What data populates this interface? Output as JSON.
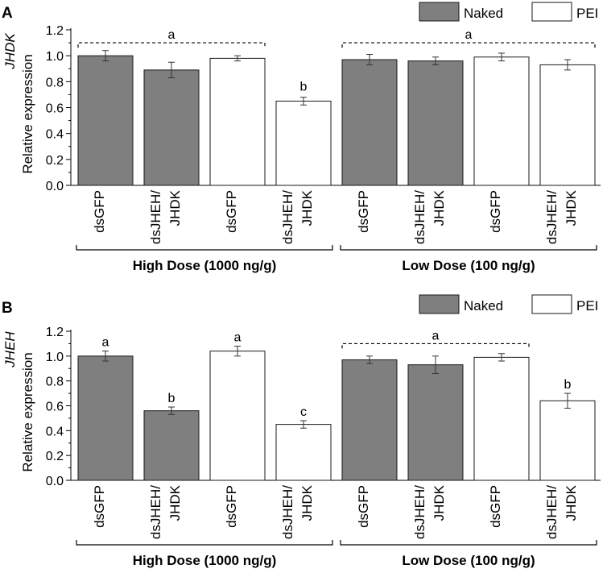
{
  "colors": {
    "naked": "#7f7f7f",
    "pei": "#ffffff",
    "edge": "#1a1a1a"
  },
  "chart_data": [
    {
      "type": "bar",
      "panel_label": "A",
      "gene": "JHDK",
      "ylabel": "Relative expression",
      "ylim": [
        0,
        1.2
      ],
      "yticks": [
        "0.0",
        "0.2",
        "0.4",
        "0.6",
        "0.8",
        "1.0",
        "1.2"
      ],
      "legend": [
        {
          "name": "Naked",
          "style": "naked"
        },
        {
          "name": "PEI",
          "style": "pei"
        }
      ],
      "bars": [
        {
          "label": [
            "dsGFP"
          ],
          "treatment": "Naked",
          "value": 1.0,
          "error": 0.04
        },
        {
          "label": [
            "dsJHEH/",
            "JHDK"
          ],
          "treatment": "Naked",
          "value": 0.89,
          "error": 0.06
        },
        {
          "label": [
            "dsGFP"
          ],
          "treatment": "PEI",
          "value": 0.98,
          "error": 0.02
        },
        {
          "label": [
            "dsJHEH/",
            "JHDK"
          ],
          "treatment": "PEI",
          "value": 0.65,
          "error": 0.03
        },
        {
          "label": [
            "dsGFP"
          ],
          "treatment": "Naked",
          "value": 0.97,
          "error": 0.04
        },
        {
          "label": [
            "dsJHEH/",
            "JHDK"
          ],
          "treatment": "Naked",
          "value": 0.96,
          "error": 0.03
        },
        {
          "label": [
            "dsGFP"
          ],
          "treatment": "PEI",
          "value": 0.99,
          "error": 0.03
        },
        {
          "label": [
            "dsJHEH/",
            "JHDK"
          ],
          "treatment": "PEI",
          "value": 0.93,
          "error": 0.04
        }
      ],
      "significance": [
        {
          "letter": "a",
          "from": 0,
          "to": 2,
          "level": 1.1,
          "bracket": true
        },
        {
          "letter": "b",
          "from": 3,
          "to": 3,
          "level": 0.73,
          "bracket": false
        },
        {
          "letter": "a",
          "from": 4,
          "to": 7,
          "level": 1.1,
          "bracket": true
        }
      ],
      "groups": [
        {
          "label": "High Dose (1000 ng/g)",
          "from": 0,
          "to": 3
        },
        {
          "label": "Low Dose (100 ng/g)",
          "from": 4,
          "to": 7
        }
      ]
    },
    {
      "type": "bar",
      "panel_label": "B",
      "gene": "JHEH",
      "ylabel": "Relative expression",
      "ylim": [
        0,
        1.2
      ],
      "yticks": [
        "0.0",
        "0.2",
        "0.4",
        "0.6",
        "0.8",
        "1.0",
        "1.2"
      ],
      "legend": [
        {
          "name": "Naked",
          "style": "naked"
        },
        {
          "name": "PEI",
          "style": "pei"
        }
      ],
      "bars": [
        {
          "label": [
            "dsGFP"
          ],
          "treatment": "Naked",
          "value": 1.0,
          "error": 0.04
        },
        {
          "label": [
            "dsJHEH/",
            "JHDK"
          ],
          "treatment": "Naked",
          "value": 0.56,
          "error": 0.03
        },
        {
          "label": [
            "dsGFP"
          ],
          "treatment": "PEI",
          "value": 1.04,
          "error": 0.04
        },
        {
          "label": [
            "dsJHEH/",
            "JHDK"
          ],
          "treatment": "PEI",
          "value": 0.45,
          "error": 0.03
        },
        {
          "label": [
            "dsGFP"
          ],
          "treatment": "Naked",
          "value": 0.97,
          "error": 0.03
        },
        {
          "label": [
            "dsJHEH/",
            "JHDK"
          ],
          "treatment": "Naked",
          "value": 0.93,
          "error": 0.07
        },
        {
          "label": [
            "dsGFP"
          ],
          "treatment": "PEI",
          "value": 0.99,
          "error": 0.03
        },
        {
          "label": [
            "dsJHEH/",
            "JHDK"
          ],
          "treatment": "PEI",
          "value": 0.64,
          "error": 0.06
        }
      ],
      "significance": [
        {
          "letter": "a",
          "from": 0,
          "to": 0,
          "level": 1.08,
          "bracket": false
        },
        {
          "letter": "b",
          "from": 1,
          "to": 1,
          "level": 0.63,
          "bracket": false
        },
        {
          "letter": "a",
          "from": 2,
          "to": 2,
          "level": 1.12,
          "bracket": false
        },
        {
          "letter": "c",
          "from": 3,
          "to": 3,
          "level": 0.52,
          "bracket": false
        },
        {
          "letter": "a",
          "from": 4,
          "to": 6,
          "level": 1.1,
          "bracket": true
        },
        {
          "letter": "b",
          "from": 7,
          "to": 7,
          "level": 0.74,
          "bracket": false
        }
      ],
      "groups": [
        {
          "label": "High Dose (1000 ng/g)",
          "from": 0,
          "to": 3
        },
        {
          "label": "Low Dose (100 ng/g)",
          "from": 4,
          "to": 7
        }
      ]
    }
  ]
}
